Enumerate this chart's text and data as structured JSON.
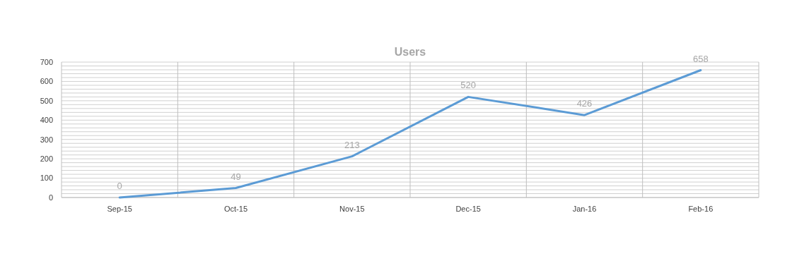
{
  "chart_data": {
    "type": "line",
    "title": "Users",
    "categories": [
      "Sep-15",
      "Oct-15",
      "Nov-15",
      "Dec-15",
      "Jan-16",
      "Feb-16"
    ],
    "series": [
      {
        "color": "#5b9bd5",
        "values": [
          0,
          49,
          213,
          520,
          426,
          658
        ]
      }
    ],
    "ylim": [
      0,
      700
    ],
    "yticks": [
      0,
      {
        "value": 20,
        "label": null
      },
      {
        "value": 40,
        "label": null
      },
      {
        "value": 60,
        "label": null
      },
      {
        "value": 80,
        "label": null
      },
      100,
      {
        "value": 120,
        "label": null
      },
      {
        "value": 140,
        "label": null
      },
      {
        "value": 160,
        "label": null
      },
      {
        "value": 180,
        "label": null
      },
      200,
      {
        "value": 220,
        "label": null
      },
      {
        "value": 240,
        "label": null
      },
      {
        "value": 260,
        "label": null
      },
      {
        "value": 280,
        "label": null
      },
      300,
      {
        "value": 320,
        "label": null
      },
      {
        "value": 340,
        "label": null
      },
      {
        "value": 360,
        "label": null
      },
      {
        "value": 380,
        "label": null
      },
      400,
      {
        "value": 420,
        "label": null
      },
      {
        "value": 440,
        "label": null
      },
      {
        "value": 460,
        "label": null
      },
      {
        "value": 480,
        "label": null
      },
      500,
      {
        "value": 520,
        "label": null
      },
      {
        "value": 540,
        "label": null
      },
      {
        "value": 560,
        "label": null
      },
      {
        "value": 580,
        "label": null
      },
      600,
      {
        "value": 620,
        "label": null
      },
      {
        "value": 640,
        "label": null
      },
      {
        "value": 660,
        "label": null
      },
      {
        "value": 680,
        "label": null
      },
      700
    ],
    "grid": true,
    "data_labels": true,
    "marker": "none",
    "line_style": "solid"
  }
}
